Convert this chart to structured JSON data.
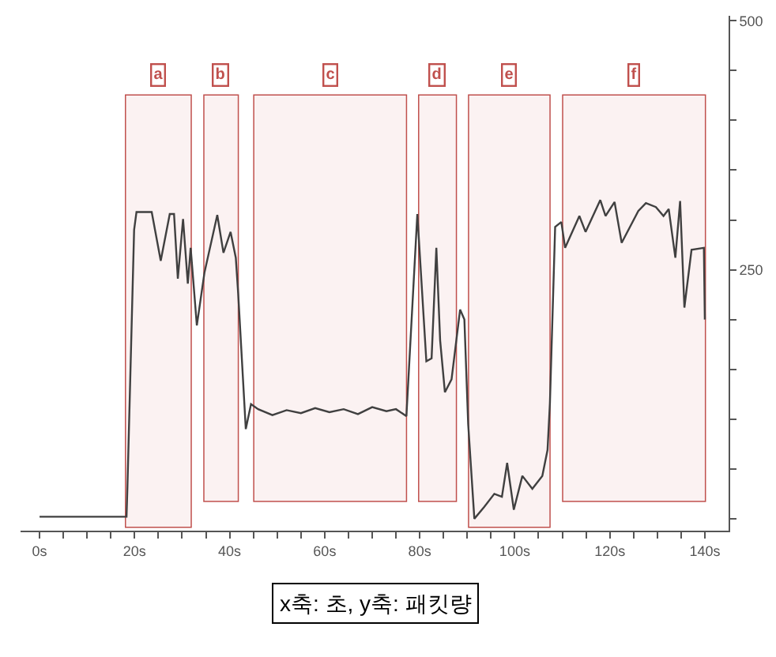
{
  "chart_data": {
    "type": "line",
    "x": [
      0,
      18.3,
      18.5,
      19.9,
      20.4,
      23.6,
      25.5,
      27.4,
      28.3,
      29.1,
      30.2,
      31.2,
      31.8,
      33.1,
      34.7,
      37.4,
      38.7,
      40.2,
      41.3,
      41.8,
      43.4,
      44.5,
      46,
      49,
      52,
      55,
      58,
      61,
      64,
      67,
      70,
      73,
      75,
      77.2,
      79.5,
      81.4,
      82.5,
      83.5,
      84.3,
      85.3,
      86.7,
      88.5,
      89.4,
      90.2,
      91.5,
      93.6,
      95.7,
      97.3,
      98.4,
      99.8,
      101.6,
      103.7,
      105.8,
      106.9,
      107.4,
      108.5,
      109.8,
      110.6,
      113.6,
      114.9,
      118,
      119.1,
      121,
      122.5,
      126,
      127.6,
      129.7,
      131.3,
      132.4,
      133.8,
      134.8,
      135.7,
      137.2,
      139.8,
      140
    ],
    "series": [
      {
        "color": "#404040",
        "values": [
          2,
          2,
          33,
          290,
          308,
          308,
          259,
          306,
          306,
          241,
          301,
          236,
          272,
          194,
          247,
          305,
          267,
          288,
          262,
          226,
          90,
          115,
          110,
          104,
          109,
          106,
          111,
          107,
          110,
          105,
          112,
          108,
          110,
          103,
          306,
          158,
          161,
          272,
          179,
          127,
          140,
          210,
          200,
          95,
          0,
          12,
          25,
          22,
          56,
          9,
          43,
          30,
          43,
          69,
          116,
          293,
          298,
          272,
          304,
          288,
          320,
          304,
          318,
          277,
          309,
          317,
          313,
          304,
          311,
          262,
          319,
          212,
          270,
          272,
          200
        ]
      }
    ],
    "xlim": [
      -4,
      145
    ],
    "ylim": [
      -12,
      505
    ],
    "xticks": [
      {
        "value": 0,
        "label": "0s"
      },
      {
        "value": 5,
        "label": null
      },
      {
        "value": 10,
        "label": null
      },
      {
        "value": 15,
        "label": null
      },
      {
        "value": 20,
        "label": "20s"
      },
      {
        "value": 25,
        "label": null
      },
      {
        "value": 30,
        "label": null
      },
      {
        "value": 35,
        "label": null
      },
      {
        "value": 40,
        "label": "40s"
      },
      {
        "value": 45,
        "label": null
      },
      {
        "value": 50,
        "label": null
      },
      {
        "value": 55,
        "label": null
      },
      {
        "value": 60,
        "label": "60s"
      },
      {
        "value": 65,
        "label": null
      },
      {
        "value": 70,
        "label": null
      },
      {
        "value": 75,
        "label": null
      },
      {
        "value": 80,
        "label": "80s"
      },
      {
        "value": 85,
        "label": null
      },
      {
        "value": 90,
        "label": null
      },
      {
        "value": 95,
        "label": null
      },
      {
        "value": 100,
        "label": "100s"
      },
      {
        "value": 105,
        "label": null
      },
      {
        "value": 110,
        "label": null
      },
      {
        "value": 115,
        "label": null
      },
      {
        "value": 120,
        "label": "120s"
      },
      {
        "value": 125,
        "label": null
      },
      {
        "value": 130,
        "label": null
      },
      {
        "value": 135,
        "label": null
      },
      {
        "value": 140,
        "label": "140s"
      }
    ],
    "yticks": [
      {
        "value": 0,
        "label": null
      },
      {
        "value": 50,
        "label": null
      },
      {
        "value": 100,
        "label": null
      },
      {
        "value": 150,
        "label": null
      },
      {
        "value": 200,
        "label": null
      },
      250,
      {
        "value": 300,
        "label": null
      },
      {
        "value": 350,
        "label": null
      },
      {
        "value": 400,
        "label": null
      },
      {
        "value": 450,
        "label": null
      },
      500
    ],
    "bands": [
      {
        "axis": "x",
        "from": 18.2,
        "to": 31.8,
        "label": "a",
        "color": "#c0504d"
      },
      {
        "axis": "x",
        "from": 34.7,
        "to": 41.7,
        "label": "b",
        "color": "#c0504d"
      },
      {
        "axis": "x",
        "from": 45.2,
        "to": 77.1,
        "label": "c",
        "color": "#c0504d"
      },
      {
        "axis": "x",
        "from": 79.9,
        "to": 87.6,
        "label": "d",
        "color": "#c0504d"
      },
      {
        "axis": "x",
        "from": 90.4,
        "to": 107.3,
        "label": "e",
        "color": "#c0504d"
      },
      {
        "axis": "x",
        "from": 110.2,
        "to": 140,
        "label": "f",
        "color": "#c0504d"
      }
    ],
    "annotations": [
      "x축: 초, y축: 패킷량"
    ],
    "grid": false,
    "marker": "none",
    "line_style": "solid"
  }
}
